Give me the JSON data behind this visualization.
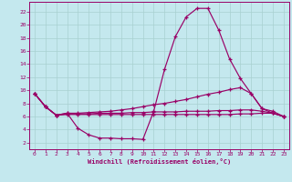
{
  "xlabel": "Windchill (Refroidissement éolien,°C)",
  "bg_color": "#c4e8ee",
  "line_color": "#990066",
  "grid_color": "#a8d0d0",
  "xlim": [
    -0.5,
    23.5
  ],
  "ylim": [
    1.0,
    23.5
  ],
  "xticks": [
    0,
    1,
    2,
    3,
    4,
    5,
    6,
    7,
    8,
    9,
    10,
    11,
    12,
    13,
    14,
    15,
    16,
    17,
    18,
    19,
    20,
    21,
    22,
    23
  ],
  "yticks": [
    2,
    4,
    6,
    8,
    10,
    12,
    14,
    16,
    18,
    20,
    22
  ],
  "s1_x": [
    0,
    1,
    2,
    3,
    4,
    5,
    6,
    7,
    8,
    9,
    10,
    11,
    12,
    13,
    14,
    15,
    16,
    17,
    18,
    19,
    20,
    21,
    22,
    23
  ],
  "s1_y": [
    9.5,
    7.5,
    6.2,
    6.5,
    4.2,
    3.2,
    2.7,
    2.7,
    2.6,
    2.6,
    2.5,
    6.8,
    13.2,
    18.2,
    21.2,
    22.5,
    22.5,
    19.2,
    14.8,
    11.8,
    9.5,
    7.2,
    6.5,
    6.0
  ],
  "s2_x": [
    0,
    1,
    2,
    3,
    4,
    5,
    6,
    7,
    8,
    9,
    10,
    11,
    12,
    13,
    14,
    15,
    16,
    17,
    18,
    19,
    20,
    21,
    22,
    23
  ],
  "s2_y": [
    9.5,
    7.5,
    6.2,
    6.5,
    6.5,
    6.6,
    6.7,
    6.8,
    7.0,
    7.2,
    7.5,
    7.8,
    8.0,
    8.3,
    8.6,
    9.0,
    9.4,
    9.7,
    10.1,
    10.4,
    9.5,
    7.2,
    6.8,
    6.0
  ],
  "s3_x": [
    0,
    1,
    2,
    3,
    4,
    5,
    6,
    7,
    8,
    9,
    10,
    11,
    12,
    13,
    14,
    15,
    16,
    17,
    18,
    19,
    20,
    21,
    22,
    23
  ],
  "s3_y": [
    9.5,
    7.5,
    6.2,
    6.4,
    6.4,
    6.4,
    6.5,
    6.5,
    6.5,
    6.6,
    6.6,
    6.7,
    6.7,
    6.7,
    6.8,
    6.8,
    6.8,
    6.9,
    6.9,
    7.0,
    7.0,
    6.8,
    6.5,
    6.0
  ],
  "s4_x": [
    0,
    1,
    2,
    3,
    4,
    5,
    6,
    7,
    8,
    9,
    10,
    11,
    12,
    13,
    14,
    15,
    16,
    17,
    18,
    19,
    20,
    21,
    22,
    23
  ],
  "s4_y": [
    9.5,
    7.5,
    6.2,
    6.3,
    6.3,
    6.3,
    6.3,
    6.3,
    6.3,
    6.3,
    6.3,
    6.3,
    6.3,
    6.3,
    6.3,
    6.3,
    6.3,
    6.3,
    6.3,
    6.4,
    6.4,
    6.5,
    6.5,
    6.0
  ]
}
